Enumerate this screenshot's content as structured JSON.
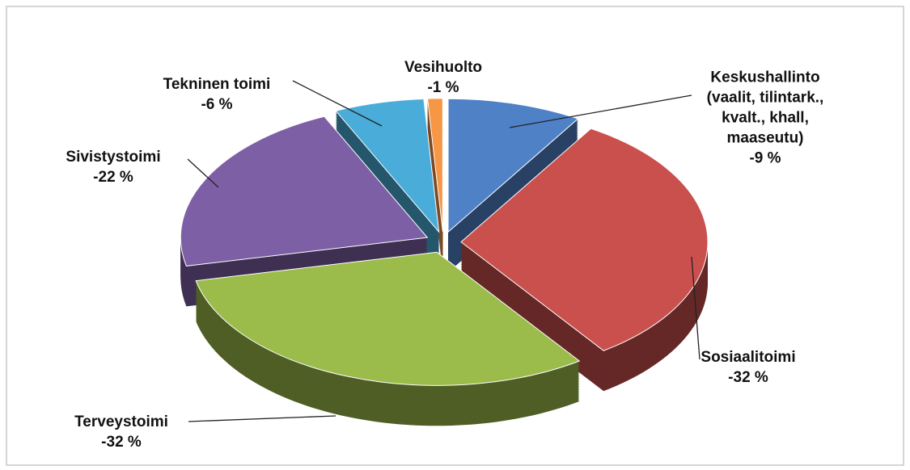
{
  "chart_data": {
    "type": "pie",
    "categories": [
      "Keskushallinto\n(vaalit, tilintark.,\nkvalt., khall,\nmaaseutu)",
      "Sosiaalitoimi",
      "Terveystoimi",
      "Sivistystoimi",
      "Tekninen toimi",
      "Vesihuolto"
    ],
    "values": [
      9,
      32,
      32,
      22,
      6,
      1
    ],
    "value_labels": [
      "-9 %",
      "-32 %",
      "-32 %",
      "-22 %",
      "-6 %",
      "-1 %"
    ],
    "colors": [
      "#4f81c7",
      "#c9504d",
      "#9bbb4a",
      "#7d5fa6",
      "#4aacd8",
      "#f79645"
    ]
  }
}
